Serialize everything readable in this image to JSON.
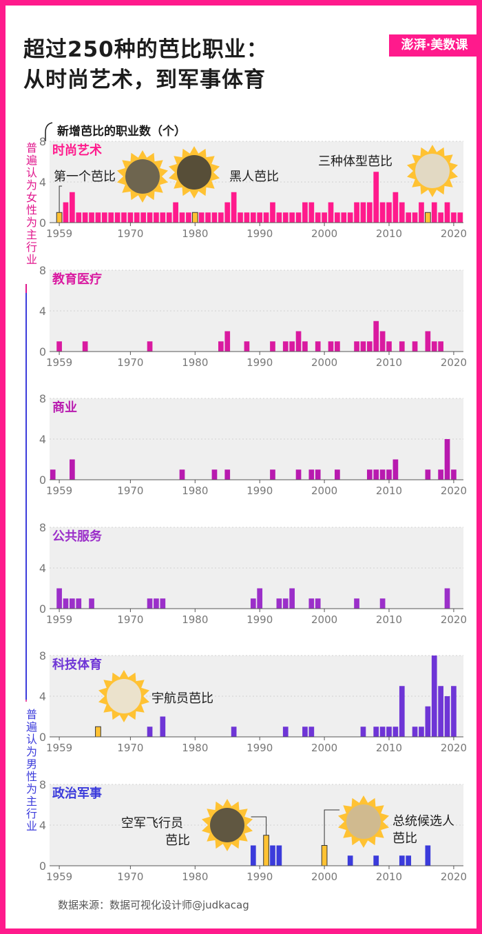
{
  "header": {
    "title_line1": "超过250种的芭比职业：",
    "title_line2": "从时尚艺术，到军事体育",
    "brand": "澎湃·美数课"
  },
  "axis_heading": "新增芭比的职业数（个）",
  "side_labels": {
    "female": "普遍认为女性为主行业",
    "male": "普遍认为男性为主行业"
  },
  "source": "数据来源：数据可视化设计师@judkacag",
  "colors": [
    "#ff1a8c",
    "#d91aa0",
    "#b81aaf",
    "#9b2fc9",
    "#6e35d6",
    "#3b3bdb"
  ],
  "chart_data": [
    {
      "type": "bar",
      "title": "时尚艺术",
      "color": "#ff1a8c",
      "x": [
        1959,
        1960,
        1961,
        1962,
        1963,
        1964,
        1965,
        1966,
        1967,
        1968,
        1969,
        1970,
        1971,
        1972,
        1973,
        1974,
        1975,
        1976,
        1977,
        1978,
        1979,
        1980,
        1981,
        1982,
        1983,
        1984,
        1985,
        1986,
        1987,
        1988,
        1989,
        1990,
        1991,
        1992,
        1993,
        1994,
        1995,
        1996,
        1997,
        1998,
        1999,
        2000,
        2001,
        2002,
        2003,
        2004,
        2005,
        2006,
        2007,
        2008,
        2009,
        2010,
        2011,
        2012,
        2013,
        2014,
        2015,
        2016,
        2017,
        2018,
        2019,
        2020,
        2021
      ],
      "values": [
        1,
        2,
        3,
        1,
        1,
        1,
        1,
        1,
        1,
        1,
        1,
        1,
        1,
        1,
        1,
        1,
        1,
        1,
        2,
        1,
        1,
        1,
        1,
        1,
        1,
        1,
        2,
        3,
        1,
        1,
        1,
        1,
        1,
        2,
        1,
        1,
        1,
        1,
        2,
        2,
        1,
        1,
        2,
        1,
        1,
        1,
        2,
        2,
        2,
        5,
        2,
        2,
        3,
        2,
        1,
        1,
        2,
        1,
        2,
        1,
        2,
        1,
        1
      ],
      "highlight": [
        1959,
        1980,
        2016
      ],
      "ticks": [
        1959,
        1970,
        1980,
        1990,
        2000,
        2010,
        2020
      ],
      "ylim": [
        0,
        8
      ],
      "yticks": [
        0,
        4,
        8
      ],
      "annotations": [
        "第一个芭比",
        "黑人芭比",
        "三种体型芭比"
      ]
    },
    {
      "type": "bar",
      "title": "教育医疗",
      "color": "#d91aa0",
      "x": [
        1959,
        1963,
        1973,
        1984,
        1985,
        1988,
        1992,
        1994,
        1995,
        1996,
        1997,
        1999,
        2001,
        2002,
        2005,
        2006,
        2007,
        2008,
        2009,
        2010,
        2012,
        2014,
        2016,
        2017,
        2018
      ],
      "values": [
        1,
        1,
        1,
        1,
        2,
        1,
        1,
        1,
        1,
        2,
        1,
        1,
        1,
        1,
        1,
        1,
        1,
        3,
        2,
        1,
        1,
        1,
        2,
        1,
        1
      ],
      "ticks": [
        1959,
        1970,
        1980,
        1990,
        2000,
        2010,
        2020
      ],
      "ylim": [
        0,
        8
      ],
      "yticks": [
        0,
        4,
        8
      ]
    },
    {
      "type": "bar",
      "title": "商业",
      "color": "#b81aaf",
      "x": [
        1958,
        1961,
        1978,
        1983,
        1985,
        1992,
        1996,
        1998,
        1999,
        2002,
        2007,
        2008,
        2009,
        2010,
        2011,
        2016,
        2018,
        2019,
        2020
      ],
      "values": [
        1,
        2,
        1,
        1,
        1,
        1,
        1,
        1,
        1,
        1,
        1,
        1,
        1,
        1,
        2,
        1,
        1,
        4,
        1
      ],
      "ticks": [
        1959,
        1970,
        1980,
        1990,
        2000,
        2010,
        2020
      ],
      "ylim": [
        0,
        8
      ],
      "yticks": [
        0,
        4,
        8
      ]
    },
    {
      "type": "bar",
      "title": "公共服务",
      "color": "#9b2fc9",
      "x": [
        1959,
        1960,
        1961,
        1962,
        1964,
        1973,
        1974,
        1975,
        1989,
        1990,
        1993,
        1994,
        1995,
        1998,
        1999,
        2005,
        2009,
        2019
      ],
      "values": [
        2,
        1,
        1,
        1,
        1,
        1,
        1,
        1,
        1,
        2,
        1,
        1,
        2,
        1,
        1,
        1,
        1,
        2
      ],
      "ticks": [
        1959,
        1970,
        1980,
        1990,
        2000,
        2010,
        2020
      ],
      "ylim": [
        0,
        8
      ],
      "yticks": [
        0,
        4,
        8
      ]
    },
    {
      "type": "bar",
      "title": "科技体育",
      "color": "#6e35d6",
      "x": [
        1965,
        1973,
        1975,
        1986,
        1994,
        1997,
        1998,
        2006,
        2008,
        2009,
        2010,
        2011,
        2012,
        2014,
        2015,
        2016,
        2017,
        2018,
        2019,
        2020
      ],
      "values": [
        1,
        1,
        2,
        1,
        1,
        1,
        1,
        1,
        1,
        1,
        1,
        1,
        5,
        1,
        1,
        3,
        8,
        5,
        4,
        5
      ],
      "highlight": [
        1965
      ],
      "ticks": [
        1959,
        1970,
        1980,
        1990,
        2000,
        2010,
        2020
      ],
      "ylim": [
        0,
        8
      ],
      "yticks": [
        0,
        4,
        8
      ],
      "annotations": [
        "宇航员芭比"
      ]
    },
    {
      "type": "bar",
      "title": "政治军事",
      "color": "#3b3bdb",
      "x": [
        1989,
        1991,
        1992,
        1993,
        2000,
        2004,
        2008,
        2012,
        2013,
        2016
      ],
      "values": [
        2,
        3,
        2,
        2,
        2,
        1,
        1,
        1,
        1,
        2
      ],
      "highlight": [
        1991,
        2000
      ],
      "ticks": [
        1959,
        1970,
        1980,
        1990,
        2000,
        2010,
        2020
      ],
      "ylim": [
        0,
        8
      ],
      "yticks": [
        0,
        4,
        8
      ],
      "annotations": [
        "空军飞行员",
        "芭比",
        "总统候选人",
        "芭比"
      ]
    }
  ]
}
